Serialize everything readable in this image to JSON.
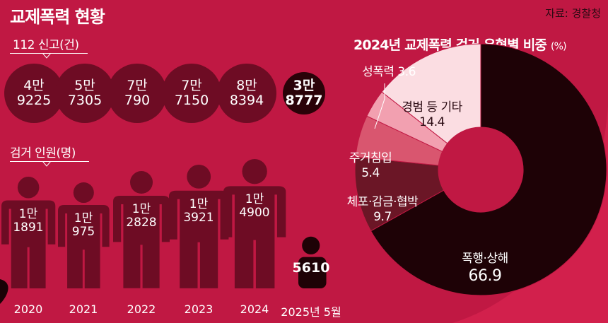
{
  "title": "교제폭력 현황",
  "source": "자료: 경찰청",
  "reports": {
    "label": "112 신고(건)",
    "items": [
      {
        "line1": "4만",
        "line2": "9225",
        "value": 49225
      },
      {
        "line1": "5만",
        "line2": "7305",
        "value": 57305
      },
      {
        "line1": "7만",
        "line2": "790",
        "value": 70790
      },
      {
        "line1": "7만",
        "line2": "7150",
        "value": 77150
      },
      {
        "line1": "8만",
        "line2": "8394",
        "value": 88394
      },
      {
        "line1": "3만",
        "line2": "8777",
        "value": 38777
      }
    ]
  },
  "arrests": {
    "label": "검거 인원(명)",
    "items": [
      {
        "line1": "1만",
        "line2": "1891",
        "value": 11891
      },
      {
        "line1": "1만",
        "line2": "975",
        "value": 10975
      },
      {
        "line1": "1만",
        "line2": "2828",
        "value": 12828
      },
      {
        "line1": "1만",
        "line2": "3921",
        "value": 13921
      },
      {
        "line1": "1만",
        "line2": "4900",
        "value": 14900
      },
      {
        "line1": "",
        "line2": "5610",
        "value": 5610
      }
    ]
  },
  "years": [
    "2020",
    "2021",
    "2022",
    "2023",
    "2024",
    "2025년 5월"
  ],
  "pie": {
    "title": "2024년 교제폭력 검거 유형별 비중",
    "unit": "(%)"
  },
  "chart_data": {
    "type": "pie",
    "title": "2024년 교제폭력 검거 유형별 비중",
    "unit": "(%)",
    "slices": [
      {
        "label": "폭행·상해",
        "value": 66.9,
        "color": "#1e0206"
      },
      {
        "label": "체포·감금·협박",
        "value": 9.7,
        "color": "#6b1626"
      },
      {
        "label": "주거침입",
        "value": 5.4,
        "color": "#d9566f"
      },
      {
        "label": "성폭력",
        "value": 3.6,
        "color": "#f2a0b0"
      },
      {
        "label": "경범 등 기타",
        "value": 14.4,
        "color": "#fbdde2"
      }
    ]
  }
}
